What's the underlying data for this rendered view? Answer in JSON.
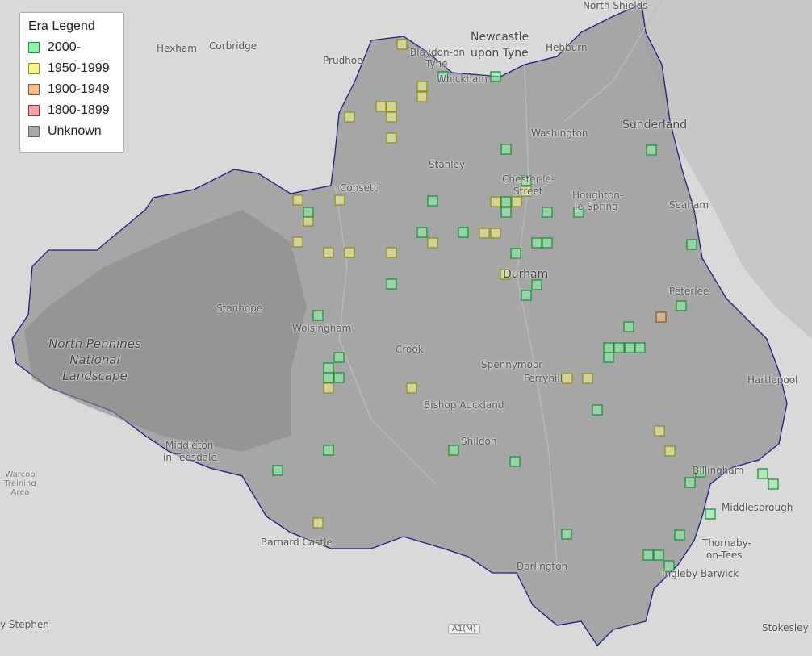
{
  "legend": {
    "title": "Era Legend",
    "items": [
      {
        "label": "2000-",
        "fill": "#8ef5a8",
        "stroke": "#1f8f3a"
      },
      {
        "label": "1950-1999",
        "fill": "#f5f58e",
        "stroke": "#8f8f1f"
      },
      {
        "label": "1900-1949",
        "fill": "#f5c08e",
        "stroke": "#8f5a1f"
      },
      {
        "label": "1800-1899",
        "fill": "#f5a0a8",
        "stroke": "#a02a3a"
      },
      {
        "label": "Unknown",
        "fill": "#a8a8a8",
        "stroke": "#666666"
      }
    ]
  },
  "places": {
    "north_shields": "North Shields",
    "newcastle": "Newcastle",
    "upon_tyne": "upon Tyne",
    "hebburn": "Hebburn",
    "hexham": "Hexham",
    "corbridge": "Corbridge",
    "prudhoe": "Prudhoe",
    "blaydon": "Blaydon-on",
    "tyne": "Tyne",
    "whickham": "Whickham",
    "washington": "Washington",
    "sunderland": "Sunderland",
    "stanley": "Stanley",
    "consett": "Consett",
    "chester": "Chester-le-",
    "street": "Street",
    "houghton": "Houghton-",
    "le_spring": "le-Spring",
    "seaham": "Seaham",
    "durham": "Durham",
    "peterlee": "Peterlee",
    "stanhope": "Stanhope",
    "wolsingham": "Wolsingham",
    "crook": "Crook",
    "spennymoor": "Spennymoor",
    "ferryhill": "Ferryhill",
    "hartlepool": "Hartlepool",
    "bishop_auckland": "Bishop Auckland",
    "shildon": "Shildon",
    "middleton": "Middleton",
    "in_teesdale": "in Teesdale",
    "billingham": "Billingham",
    "middlesbrough": "Middlesbrough",
    "thornaby": "Thornaby-",
    "on_tees": "on-Tees",
    "ingleby": "Ingleby Barwick",
    "barnard_castle": "Barnard Castle",
    "darlington": "Darlington",
    "stokesley": "Stokesley",
    "stephen": "y Stephen",
    "warcop": "Warcop",
    "training": "Training",
    "area": "Area",
    "a1m": "A1(M)",
    "park1": "North Pennines",
    "park2": "National",
    "park3": "Landscape"
  },
  "colors": {
    "county_fill": "#9a9a9a",
    "county_border": "#1a237e"
  }
}
